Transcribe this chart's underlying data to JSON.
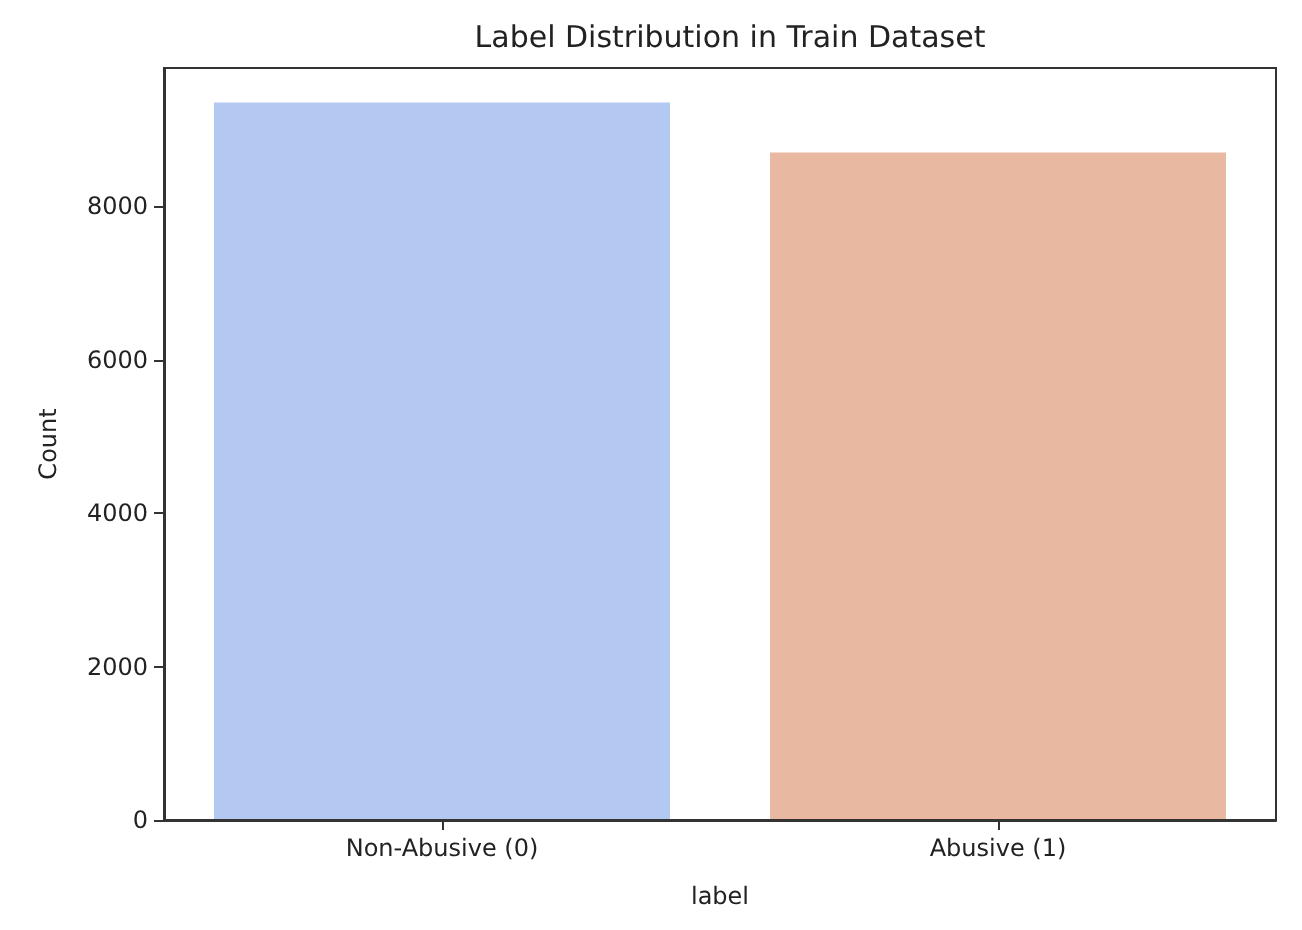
{
  "chart_data": {
    "type": "bar",
    "title": "Label Distribution in Train Dataset",
    "xlabel": "label",
    "ylabel": "Count",
    "categories": [
      "Non-Abusive (0)",
      "Abusive (1)"
    ],
    "values": [
      9350,
      8700
    ],
    "colors": [
      "#b4c9f2",
      "#e9b8a1"
    ],
    "ylim": [
      0,
      9800
    ],
    "yticks": [
      0,
      2000,
      4000,
      6000,
      8000
    ],
    "grid": false
  }
}
